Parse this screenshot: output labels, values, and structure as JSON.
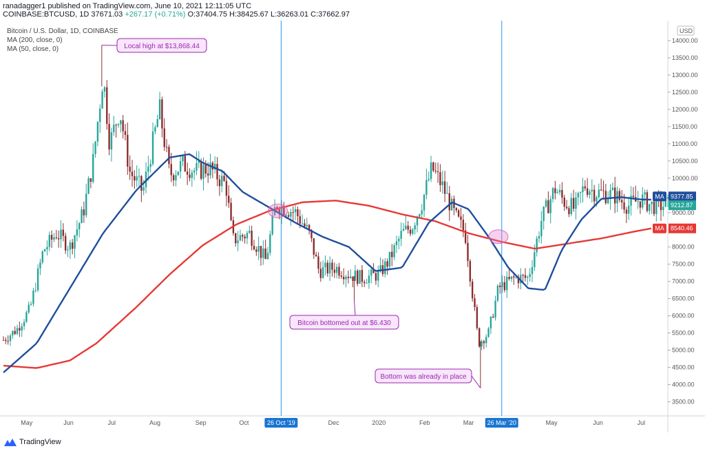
{
  "header": {
    "line1": "ranadagger1 published on TradingView.com, June 10, 2021 12:11:05 UTC",
    "symbol": "COINBASE:BTCUSD, 1D",
    "last": "37671.03",
    "change": "+267.17 (+0.71%)",
    "ohlc": "O:37404.75 H:38425.67 L:36263.01 C:37662.97"
  },
  "legend": {
    "title": "Bitcoin / U.S. Dollar, 1D, COINBASE",
    "ma200": "MA (200, close, 0)",
    "ma50": "MA (50, close, 0)"
  },
  "currency": "USD",
  "annotations": {
    "local_high": "Local high at $13,868.44",
    "bottomed": "Bitcoin bottomed out at $6.430",
    "bottom_in_place": "Bottom was already in place"
  },
  "price_labels": {
    "ma50_tag": "MA",
    "ma50_value": "9377.85",
    "last_value": "9212.87",
    "ma200_tag": "MA",
    "ma200_value": "8540.46"
  },
  "x_highlights": [
    "26 Oct '19",
    "26 Mar '20"
  ],
  "footer": {
    "brand": "TradingView"
  },
  "colors": {
    "up": "#26a69a",
    "down": "#8b2c2c",
    "ma200": "#e53935",
    "ma50": "#1f4e9c",
    "callout": "#9c27b0",
    "vline": "#2196f3"
  },
  "chart_data": {
    "type": "candlestick",
    "title": "Bitcoin / U.S. Dollar, 1D, COINBASE",
    "ylabel": "USD",
    "ylim": [
      3250,
      14500
    ],
    "y_ticks": [
      "3500.00",
      "4000.00",
      "4500.00",
      "5000.00",
      "5500.00",
      "6000.00",
      "6500.00",
      "7000.00",
      "7500.00",
      "8000.00",
      "8500.00",
      "9000.00",
      "9500.00",
      "10000.00",
      "10500.00",
      "11000.00",
      "11500.00",
      "12000.00",
      "12500.00",
      "13000.00",
      "13500.00",
      "14000.00"
    ],
    "x_ticks": [
      "May",
      "Jun",
      "Jul",
      "Aug",
      "Sep",
      "Oct",
      "26 Oct '19",
      "Dec",
      "2020",
      "Feb",
      "Mar",
      "26 Mar '20",
      "May",
      "Jun",
      "Jul"
    ],
    "x_tick_pos": [
      0.035,
      0.098,
      0.163,
      0.228,
      0.297,
      0.362,
      0.418,
      0.497,
      0.565,
      0.634,
      0.7,
      0.75,
      0.825,
      0.895,
      0.96
    ],
    "price_keys": [
      [
        0,
        5300
      ],
      [
        0.02,
        5600
      ],
      [
        0.04,
        6200
      ],
      [
        0.06,
        7900
      ],
      [
        0.08,
        8400
      ],
      [
        0.1,
        8000
      ],
      [
        0.12,
        9000
      ],
      [
        0.135,
        10500
      ],
      [
        0.15,
        13000
      ],
      [
        0.16,
        11000
      ],
      [
        0.175,
        12000
      ],
      [
        0.19,
        10200
      ],
      [
        0.21,
        9600
      ],
      [
        0.235,
        12000
      ],
      [
        0.25,
        10100
      ],
      [
        0.27,
        10400
      ],
      [
        0.29,
        10200
      ],
      [
        0.31,
        10300
      ],
      [
        0.335,
        9800
      ],
      [
        0.345,
        8200
      ],
      [
        0.37,
        8400
      ],
      [
        0.395,
        7600
      ],
      [
        0.41,
        9250
      ],
      [
        0.44,
        9000
      ],
      [
        0.46,
        8400
      ],
      [
        0.475,
        7300
      ],
      [
        0.5,
        7400
      ],
      [
        0.52,
        7200
      ],
      [
        0.54,
        7100
      ],
      [
        0.565,
        7200
      ],
      [
        0.58,
        7600
      ],
      [
        0.6,
        8400
      ],
      [
        0.615,
        8600
      ],
      [
        0.63,
        9300
      ],
      [
        0.645,
        10300
      ],
      [
        0.66,
        9800
      ],
      [
        0.68,
        8900
      ],
      [
        0.695,
        8400
      ],
      [
        0.715,
        5200
      ],
      [
        0.73,
        5500
      ],
      [
        0.745,
        6800
      ],
      [
        0.77,
        7100
      ],
      [
        0.79,
        7100
      ],
      [
        0.81,
        8800
      ],
      [
        0.83,
        9700
      ],
      [
        0.845,
        9300
      ],
      [
        0.86,
        9100
      ],
      [
        0.875,
        9800
      ],
      [
        0.89,
        9600
      ],
      [
        0.92,
        9500
      ],
      [
        0.94,
        9200
      ],
      [
        0.96,
        9400
      ],
      [
        0.975,
        9210
      ],
      [
        1.0,
        9210
      ]
    ],
    "ma200_keys": [
      [
        0,
        4550
      ],
      [
        0.05,
        4480
      ],
      [
        0.1,
        4700
      ],
      [
        0.14,
        5200
      ],
      [
        0.2,
        6250
      ],
      [
        0.25,
        7200
      ],
      [
        0.3,
        8050
      ],
      [
        0.35,
        8650
      ],
      [
        0.4,
        9050
      ],
      [
        0.45,
        9300
      ],
      [
        0.5,
        9350
      ],
      [
        0.55,
        9200
      ],
      [
        0.6,
        8950
      ],
      [
        0.65,
        8750
      ],
      [
        0.7,
        8400
      ],
      [
        0.75,
        8150
      ],
      [
        0.8,
        7950
      ],
      [
        0.85,
        8100
      ],
      [
        0.9,
        8250
      ],
      [
        0.95,
        8450
      ],
      [
        0.975,
        8540
      ]
    ],
    "ma50_keys": [
      [
        0,
        4350
      ],
      [
        0.05,
        5200
      ],
      [
        0.1,
        6800
      ],
      [
        0.15,
        8400
      ],
      [
        0.2,
        9650
      ],
      [
        0.25,
        10600
      ],
      [
        0.28,
        10700
      ],
      [
        0.3,
        10450
      ],
      [
        0.33,
        10200
      ],
      [
        0.36,
        9600
      ],
      [
        0.4,
        9150
      ],
      [
        0.44,
        8700
      ],
      [
        0.48,
        8300
      ],
      [
        0.52,
        8000
      ],
      [
        0.56,
        7300
      ],
      [
        0.6,
        7400
      ],
      [
        0.64,
        8700
      ],
      [
        0.675,
        9300
      ],
      [
        0.7,
        9100
      ],
      [
        0.73,
        8300
      ],
      [
        0.76,
        7400
      ],
      [
        0.79,
        6800
      ],
      [
        0.815,
        6750
      ],
      [
        0.84,
        7900
      ],
      [
        0.87,
        8800
      ],
      [
        0.9,
        9400
      ],
      [
        0.93,
        9450
      ],
      [
        0.96,
        9380
      ],
      [
        0.975,
        9378
      ]
    ],
    "extremes": {
      "local_high": 13868.44,
      "bottom_1": 6430,
      "bottom_2": 3900
    },
    "grid": false
  }
}
